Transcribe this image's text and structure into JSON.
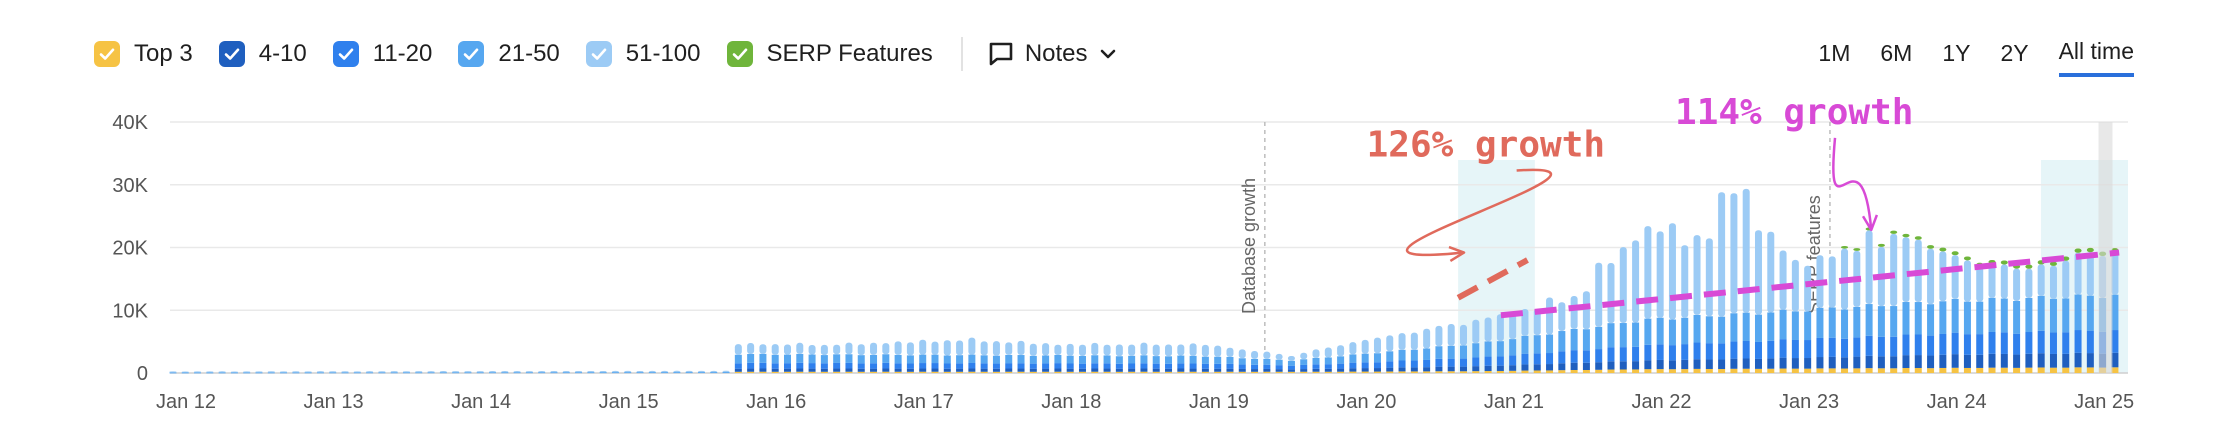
{
  "legend": {
    "items": [
      {
        "label": "Top 3",
        "color": "#f6c344"
      },
      {
        "label": "4-10",
        "color": "#1f5fbf"
      },
      {
        "label": "11-20",
        "color": "#2f80ed"
      },
      {
        "label": "21-50",
        "color": "#56a7f0"
      },
      {
        "label": "51-100",
        "color": "#9ccbf5"
      },
      {
        "label": "SERP Features",
        "color": "#6fb53b"
      }
    ]
  },
  "notes": {
    "label": "Notes",
    "icon": "comment-icon"
  },
  "ranges": [
    {
      "label": "1M",
      "active": false
    },
    {
      "label": "6M",
      "active": false
    },
    {
      "label": "1Y",
      "active": false
    },
    {
      "label": "2Y",
      "active": false
    },
    {
      "label": "All time",
      "active": true
    }
  ],
  "chart_data": {
    "type": "bar",
    "stacked": true,
    "y_ticks": [
      "0",
      "10K",
      "20K",
      "30K",
      "40K"
    ],
    "ylim": [
      0,
      40000
    ],
    "x_ticks": [
      "Jan 12",
      "Jan 13",
      "Jan 14",
      "Jan 15",
      "Jan 16",
      "Jan 17",
      "Jan 18",
      "Jan 19",
      "Jan 20",
      "Jan 21",
      "Jan 22",
      "Jan 23",
      "Jan 24",
      "Jan 25"
    ],
    "x_range": [
      2012.0,
      2025.27
    ],
    "grid": true,
    "events": [
      {
        "label": "Database growth",
        "x": 2019.42
      },
      {
        "label": "SERP features",
        "x": 2023.25
      }
    ],
    "highlights": [
      {
        "x0": 2020.73,
        "x1": 2021.25
      },
      {
        "x0": 2024.68,
        "x1": 2025.27
      }
    ],
    "series": [
      {
        "name": "Top 3",
        "color": "#f6c344",
        "anchors": [
          [
            2012.0,
            0
          ],
          [
            2015.8,
            0
          ],
          [
            2015.81,
            200
          ],
          [
            2019.8,
            200
          ],
          [
            2020.9,
            300
          ],
          [
            2022.0,
            600
          ],
          [
            2023.0,
            700
          ],
          [
            2024.0,
            800
          ],
          [
            2025.2,
            900
          ]
        ]
      },
      {
        "name": "4-10",
        "color": "#1f5fbf",
        "anchors": [
          [
            2012.0,
            0
          ],
          [
            2015.8,
            0
          ],
          [
            2015.81,
            500
          ],
          [
            2019.0,
            500
          ],
          [
            2019.6,
            400
          ],
          [
            2020.9,
            800
          ],
          [
            2022.0,
            1400
          ],
          [
            2023.0,
            1700
          ],
          [
            2024.0,
            2100
          ],
          [
            2025.2,
            2300
          ]
        ]
      },
      {
        "name": "11-20",
        "color": "#2f80ed",
        "anchors": [
          [
            2012.0,
            0
          ],
          [
            2015.8,
            0
          ],
          [
            2015.81,
            900
          ],
          [
            2019.0,
            800
          ],
          [
            2019.6,
            600
          ],
          [
            2020.9,
            1400
          ],
          [
            2022.0,
            2400
          ],
          [
            2023.0,
            2900
          ],
          [
            2024.0,
            3300
          ],
          [
            2025.2,
            3600
          ]
        ]
      },
      {
        "name": "21-50",
        "color": "#56a7f0",
        "anchors": [
          [
            2012.0,
            100
          ],
          [
            2015.8,
            150
          ],
          [
            2015.81,
            1400
          ],
          [
            2019.0,
            1200
          ],
          [
            2019.6,
            800
          ],
          [
            2020.9,
            2300
          ],
          [
            2022.0,
            4100
          ],
          [
            2023.0,
            4600
          ],
          [
            2024.0,
            5200
          ],
          [
            2025.2,
            5600
          ]
        ]
      },
      {
        "name": "51-100",
        "color": "#9ccbf5",
        "anchors": [
          [
            2012.0,
            150
          ],
          [
            2015.8,
            200
          ],
          [
            2015.81,
            1700
          ],
          [
            2016.5,
            1600
          ],
          [
            2017.4,
            2500
          ],
          [
            2018.0,
            1800
          ],
          [
            2019.0,
            1900
          ],
          [
            2019.6,
            800
          ],
          [
            2020.0,
            2000
          ],
          [
            2020.9,
            3800
          ],
          [
            2021.5,
            4800
          ],
          [
            2022.05,
            15000
          ],
          [
            2022.3,
            11800
          ],
          [
            2022.7,
            17000
          ],
          [
            2023.0,
            7500
          ],
          [
            2023.5,
            9500
          ],
          [
            2023.7,
            11000
          ],
          [
            2024.2,
            6000
          ],
          [
            2024.6,
            4600
          ],
          [
            2025.0,
            6800
          ],
          [
            2025.2,
            7000
          ]
        ]
      },
      {
        "name": "SERP Features",
        "color": "#6fb53b",
        "anchors": [
          [
            2012.0,
            0
          ],
          [
            2023.3,
            0
          ],
          [
            2023.31,
            400
          ],
          [
            2024.0,
            600
          ],
          [
            2025.2,
            700
          ]
        ]
      }
    ],
    "annotations": [
      {
        "text": "126% growth",
        "color": "#e06a5c",
        "tx": 2020.11,
        "ty": 34500,
        "line": [
          [
            2020.73,
            12000
          ],
          [
            2021.2,
            18000
          ]
        ],
        "arrow_to": [
          2020.77,
          19200
        ]
      },
      {
        "text": "114% growth",
        "color": "#d84ad6",
        "tx": 2022.2,
        "ty": 39700,
        "line": [
          [
            2021.02,
            9200
          ],
          [
            2025.21,
            19200
          ]
        ],
        "arrow_to": [
          2023.53,
          22800
        ]
      }
    ]
  }
}
